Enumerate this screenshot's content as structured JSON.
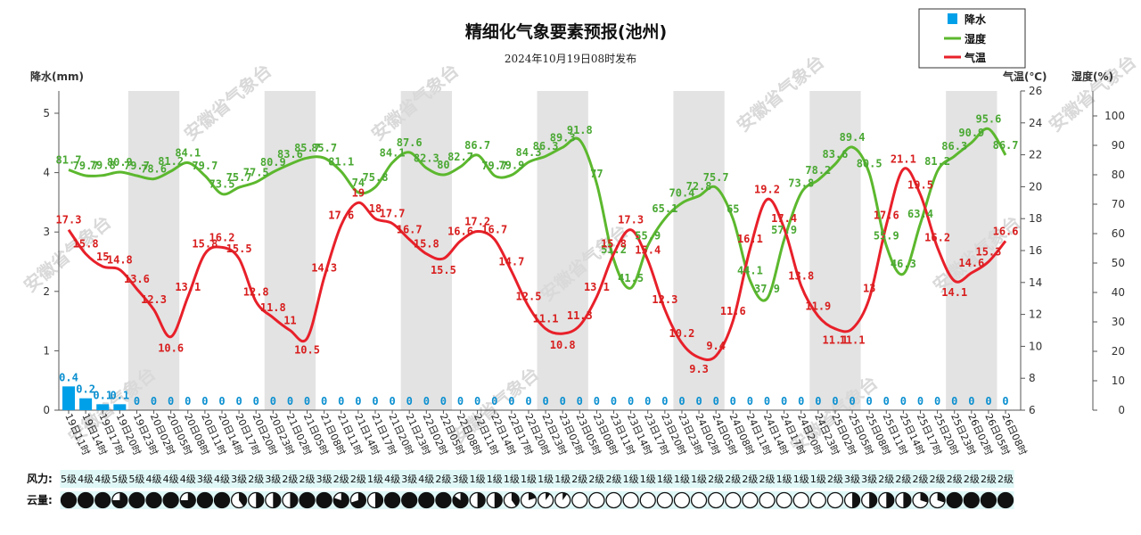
{
  "chart_data": {
    "type": "line",
    "title": "精细化气象要素预报(池州)",
    "subtitle": "2024年10月19日08时发布",
    "watermark": "安徽省气象台",
    "colors": {
      "precip": "#00a0e9",
      "humidity": "#5cb82e",
      "temperature": "#e8202a"
    },
    "axes": {
      "precip": {
        "label": "降水(mm)",
        "min": 0,
        "max": 5,
        "ticks": [
          0,
          1,
          2,
          3,
          4,
          5
        ]
      },
      "temperature": {
        "label": "气温(℃)",
        "min": 6,
        "max": 26,
        "ticks": [
          6,
          8,
          10,
          12,
          14,
          16,
          18,
          20,
          22,
          24,
          26
        ]
      },
      "humidity": {
        "label": "湿度(%)",
        "min": 0,
        "max": 100,
        "ticks": [
          0,
          10,
          20,
          30,
          40,
          50,
          60,
          70,
          80,
          90,
          100
        ]
      }
    },
    "legend": {
      "placement": "top-right",
      "items": [
        {
          "name": "降水",
          "marker": "bar",
          "color": "#00a0e9"
        },
        {
          "name": "湿度",
          "marker": "line",
          "color": "#5cb82e"
        },
        {
          "name": "气温",
          "marker": "line",
          "color": "#e8202a"
        }
      ]
    },
    "categories": [
      "19日11时",
      "19日14时",
      "19日17时",
      "19日20时",
      "19日23时",
      "20日02时",
      "20日05时",
      "20日08时",
      "20日11时",
      "20日14时",
      "20日17时",
      "20日20时",
      "20日23时",
      "21日02时",
      "21日05时",
      "21日08时",
      "21日11时",
      "21日14时",
      "21日17时",
      "21日20时",
      "21日23时",
      "22日02时",
      "22日05时",
      "22日08时",
      "22日11时",
      "22日14时",
      "22日17时",
      "22日20时",
      "22日23时",
      "23日02时",
      "23日05时",
      "23日08时",
      "23日11时",
      "23日14时",
      "23日17时",
      "23日20时",
      "23日23时",
      "24日02时",
      "24日05时",
      "24日08时",
      "24日11时",
      "24日14时",
      "24日17时",
      "24日20时",
      "24日23时",
      "25日02时",
      "25日05时",
      "25日08时",
      "25日11时",
      "25日14时",
      "25日17时",
      "25日20时",
      "25日23时",
      "26日02时",
      "26日05时",
      "26日08时"
    ],
    "series": [
      {
        "name": "降水",
        "axis": "precip",
        "values": [
          0.4,
          0.2,
          0.1,
          0.1,
          0,
          0,
          0,
          0,
          0,
          0,
          0,
          0,
          0,
          0,
          0,
          0,
          0,
          0,
          0,
          0,
          0,
          0,
          0,
          0,
          0,
          0,
          0,
          0,
          0,
          0,
          0,
          0,
          0,
          0,
          0,
          0,
          0,
          0,
          0,
          0,
          0,
          0,
          0,
          0,
          0,
          0,
          0,
          0,
          0,
          0,
          0,
          0,
          0,
          0,
          0,
          0
        ]
      },
      {
        "name": "湿度",
        "axis": "humidity",
        "values": [
          81.7,
          79.7,
          79.8,
          80.9,
          79.7,
          78.6,
          81.2,
          84.1,
          79.7,
          73.5,
          75.7,
          77.5,
          80.9,
          83.6,
          85.7,
          85.7,
          81.1,
          74,
          75.8,
          84.1,
          87.6,
          82.3,
          80,
          82.7,
          86.7,
          79.7,
          79.9,
          84.3,
          86.3,
          89.3,
          91.8,
          77,
          51.2,
          41.5,
          55.9,
          65.1,
          70.4,
          72.8,
          75.7,
          65,
          44.1,
          37.9,
          57.9,
          73.8,
          78.2,
          83.6,
          89.4,
          80.5,
          55.9,
          46.3,
          63.4,
          81.2,
          86.3,
          90.9,
          95.6,
          86.7
        ]
      },
      {
        "name": "气温",
        "axis": "temperature",
        "values": [
          17.3,
          15.8,
          15,
          14.8,
          13.6,
          12.3,
          10.6,
          13.1,
          15.8,
          16.2,
          15.5,
          12.8,
          11.8,
          11,
          10.5,
          14.3,
          17.6,
          19,
          18,
          17.7,
          16.7,
          15.8,
          15.5,
          16.6,
          17.2,
          16.7,
          14.7,
          12.5,
          11.1,
          10.8,
          11.3,
          13.1,
          15.8,
          17.3,
          15.4,
          12.3,
          10.2,
          9.3,
          9.4,
          11.6,
          16.1,
          19.2,
          17.4,
          13.8,
          11.9,
          11.1,
          11.1,
          13,
          17.6,
          21.1,
          19.5,
          16.2,
          14.1,
          14.6,
          15.3,
          16.6
        ]
      }
    ],
    "xlabel": "",
    "grid": false
  },
  "rows": {
    "wind_label": "风力:",
    "cloud_label": "云量:",
    "wind": [
      "5级",
      "4级",
      "4级",
      "5级",
      "5级",
      "4级",
      "4级",
      "4级",
      "3级",
      "4级",
      "3级",
      "2级",
      "3级",
      "2级",
      "2级",
      "3级",
      "2级",
      "2级",
      "1级",
      "4级",
      "3级",
      "4级",
      "2级",
      "3级",
      "1级",
      "1级",
      "1级",
      "1级",
      "1级",
      "1级",
      "2级",
      "2级",
      "2级",
      "1级",
      "1级",
      "1级",
      "1级",
      "1级",
      "2级",
      "2级",
      "2级",
      "2级",
      "1级",
      "1级",
      "1级",
      "2级",
      "3级",
      "3级",
      "2级",
      "2级",
      "2级",
      "2级",
      "2级",
      "2级",
      "2级",
      "2级"
    ],
    "cloud": [
      1,
      1,
      1,
      0.75,
      1,
      1,
      1,
      0.75,
      1,
      1,
      0.4,
      0.5,
      0.5,
      0.5,
      1,
      1,
      0.8,
      0.7,
      0.5,
      1,
      1,
      1,
      1,
      0.85,
      0.5,
      0.5,
      0.4,
      0.2,
      0.1,
      0.1,
      0,
      0,
      0,
      0,
      0,
      0,
      0,
      0,
      0,
      0,
      0,
      0,
      0,
      0,
      0,
      0,
      0.5,
      0.5,
      0.5,
      0.5,
      0.3,
      0.3,
      1,
      1,
      1,
      1
    ]
  }
}
